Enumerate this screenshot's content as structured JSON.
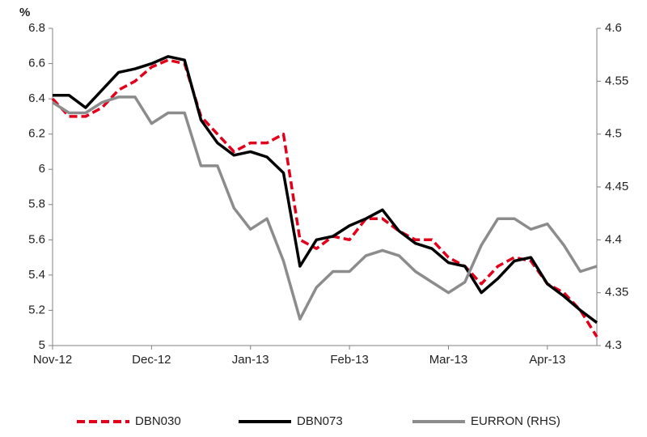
{
  "chart_data": {
    "type": "line",
    "y_label": "%",
    "categories": [
      "Nov-12",
      null,
      null,
      null,
      null,
      null,
      "Dec-12",
      null,
      null,
      null,
      null,
      null,
      "Jan-13",
      null,
      null,
      null,
      null,
      null,
      "Feb-13",
      null,
      null,
      null,
      null,
      null,
      "Mar-13",
      null,
      null,
      null,
      null,
      null,
      "Apr-13",
      null,
      null,
      null
    ],
    "series": [
      {
        "name": "DBN030",
        "color": "#e3001b",
        "dashed": true,
        "values": [
          6.4,
          6.3,
          6.3,
          6.35,
          6.45,
          6.5,
          6.58,
          6.62,
          6.6,
          6.3,
          6.2,
          6.1,
          6.15,
          6.15,
          6.2,
          5.6,
          5.55,
          5.62,
          5.6,
          5.72,
          5.72,
          5.65,
          5.6,
          5.6,
          5.5,
          5.45,
          5.35,
          5.45,
          5.5,
          5.48,
          5.35,
          5.3,
          5.2,
          5.05
        ]
      },
      {
        "name": "DBN073",
        "color": "#000000",
        "dashed": false,
        "values": [
          6.42,
          6.42,
          6.35,
          6.45,
          6.55,
          6.57,
          6.6,
          6.64,
          6.62,
          6.28,
          6.15,
          6.08,
          6.1,
          6.07,
          5.98,
          5.45,
          5.6,
          5.62,
          5.68,
          5.72,
          5.77,
          5.65,
          5.58,
          5.55,
          5.47,
          5.45,
          5.3,
          5.38,
          5.48,
          5.5,
          5.35,
          5.28,
          5.2,
          5.13
        ]
      },
      {
        "name": "EURRON (RHS)",
        "color": "#8c8c8c",
        "dashed": false,
        "axis": "y2",
        "values": [
          4.53,
          4.52,
          4.52,
          4.53,
          4.535,
          4.535,
          4.51,
          4.52,
          4.52,
          4.47,
          4.47,
          4.43,
          4.41,
          4.42,
          4.38,
          4.325,
          4.355,
          4.37,
          4.37,
          4.385,
          4.39,
          4.385,
          4.37,
          4.36,
          4.35,
          4.36,
          4.395,
          4.42,
          4.42,
          4.41,
          4.415,
          4.395,
          4.37,
          4.375
        ]
      }
    ],
    "ylim": [
      5,
      6.8
    ],
    "yticks": [
      5,
      5.2,
      5.4,
      5.6,
      5.8,
      6,
      6.2,
      6.4,
      6.6,
      6.8
    ],
    "y2lim": [
      4.3,
      4.6
    ],
    "y2ticks": [
      4.3,
      4.35,
      4.4,
      4.45,
      4.5,
      4.55,
      4.6
    ],
    "grid": false,
    "legend": "bottom"
  }
}
